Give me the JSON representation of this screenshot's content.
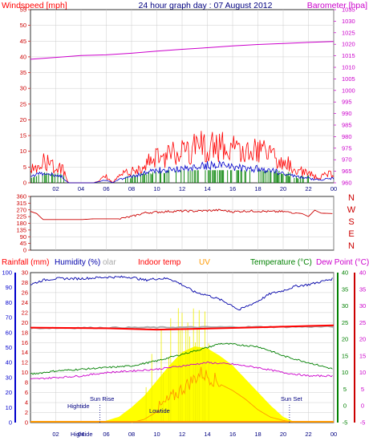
{
  "header": {
    "title": "24 hour graph day : 07 August 2012",
    "left_label": "Windspeed [mph]",
    "right_label": "Barometer [hpa]"
  },
  "colors": {
    "windspeed": "#ff0000",
    "wind_avg": "#0000cc",
    "wind_green": "#008000",
    "barometer": "#cc00cc",
    "direction": "#cc0000",
    "humidity": "#0000aa",
    "solar": "#aaaaaa",
    "indoor": "#ff0000",
    "uv": "#ff9900",
    "temperature": "#008000",
    "dewpoint": "#cc00cc",
    "rain": "#ff0000",
    "sun_fill": "#ffff00",
    "axis_red": "#cc0000",
    "axis_blue": "#0000cc",
    "axis_green": "#008000",
    "grid": "#cccccc",
    "night_band": "#ff9900"
  },
  "chart_data": [
    {
      "type": "line",
      "name": "wind-barometer",
      "x_ticks": [
        "02",
        "04",
        "06",
        "08",
        "10",
        "12",
        "14",
        "16",
        "18",
        "20",
        "22",
        "00"
      ],
      "left_axis": {
        "label": "Windspeed [mph]",
        "ylim": [
          0,
          55
        ],
        "ticks": [
          0,
          5,
          10,
          15,
          20,
          25,
          30,
          35,
          40,
          45,
          50,
          55
        ]
      },
      "right_axis": {
        "label": "Barometer [hpa]",
        "ylim": [
          960,
          1035
        ],
        "ticks": [
          960,
          965,
          970,
          975,
          980,
          985,
          990,
          995,
          1000,
          1005,
          1010,
          1015,
          1020,
          1025,
          1030,
          1035
        ]
      },
      "series": [
        {
          "name": "Windspeed [mph]",
          "x": [
            0,
            1,
            1.5,
            2,
            2.5,
            3,
            5,
            6,
            6.5,
            7,
            8,
            9,
            10,
            11,
            12,
            13,
            14,
            15,
            15.5,
            16,
            17,
            18,
            19,
            20,
            21,
            22,
            22.5,
            23,
            24
          ],
          "y": [
            4,
            7,
            6,
            5,
            5,
            0,
            0,
            2,
            0,
            2,
            4,
            6,
            8,
            9,
            10,
            11,
            12,
            12,
            13,
            11,
            10,
            10,
            9,
            7,
            4,
            3,
            2,
            2,
            3
          ]
        },
        {
          "x": [
            0,
            1,
            1.5,
            2,
            2.5,
            3,
            5,
            6,
            6.5,
            7,
            8,
            9,
            10,
            11,
            12,
            13,
            14,
            15,
            15.5,
            16,
            17,
            18,
            19,
            20,
            21,
            22,
            22.5,
            23,
            24
          ],
          "y": [
            2,
            3,
            3,
            2,
            2,
            0,
            0,
            1,
            0,
            1,
            2,
            3,
            4,
            4,
            4.5,
            5,
            5.5,
            5.5,
            6,
            5,
            4.5,
            4.5,
            4,
            3,
            2,
            1.5,
            1,
            1,
            1.5
          ]
        },
        {
          "name": "Barometer [hpa]",
          "x": [
            0,
            2,
            4,
            6,
            8,
            10,
            12,
            14,
            16,
            18,
            20,
            22,
            24
          ],
          "y": [
            1013.5,
            1014.3,
            1015.1,
            1015.4,
            1016.1,
            1017.0,
            1017.8,
            1018.5,
            1019.3,
            1019.9,
            1020.3,
            1020.8,
            1021.2
          ]
        }
      ]
    },
    {
      "type": "line",
      "name": "wind-direction",
      "x_ticks": [
        "02",
        "04",
        "06",
        "08",
        "10",
        "12",
        "14",
        "16",
        "18",
        "20",
        "22",
        "00"
      ],
      "left_axis": {
        "ylim": [
          0,
          360
        ],
        "ticks": [
          0,
          45,
          90,
          135,
          180,
          225,
          270,
          315,
          360
        ]
      },
      "right_letters": [
        "N",
        "W",
        "S",
        "E",
        "N"
      ],
      "series": [
        {
          "x": [
            0,
            0.5,
            1,
            2,
            3,
            4,
            5,
            6,
            7,
            8,
            9,
            10,
            11,
            12,
            13,
            14,
            15,
            16,
            17,
            18,
            19,
            20,
            21,
            21.5,
            22,
            22.5,
            23,
            24
          ],
          "y": [
            260,
            245,
            205,
            205,
            205,
            205,
            210,
            210,
            210,
            225,
            250,
            255,
            260,
            262,
            262,
            265,
            268,
            258,
            262,
            262,
            258,
            258,
            250,
            245,
            225,
            268,
            248,
            245
          ]
        }
      ]
    },
    {
      "type": "line",
      "name": "rain-humidity-temperature",
      "legend": [
        "Rainfall (mm)",
        "Humidity (%)",
        "olar",
        "Indoor temp",
        "UV",
        "Temperature (°C)",
        "Dew Point (°C)"
      ],
      "x_ticks": [
        "02",
        "04",
        "06",
        "08",
        "10",
        "12",
        "14",
        "16",
        "18",
        "20",
        "22",
        "00"
      ],
      "axis_humidity": {
        "ylim": [
          0,
          100
        ],
        "ticks": [
          0,
          10,
          20,
          30,
          40,
          50,
          60,
          70,
          80,
          90,
          100
        ]
      },
      "axis_rain": {
        "ylim": [
          0,
          30
        ],
        "ticks": [
          0,
          2,
          4,
          6,
          8,
          10,
          12,
          14,
          16,
          18,
          20,
          22,
          24,
          26,
          28,
          30
        ]
      },
      "axis_temp": {
        "ylim": [
          -5,
          40
        ],
        "ticks": [
          -5,
          0,
          5,
          10,
          15,
          20,
          25,
          30,
          35,
          40
        ]
      },
      "series": [
        {
          "name": "Humidity (%)",
          "x": [
            0,
            1,
            2,
            4,
            6,
            8,
            9,
            10,
            11,
            12,
            13,
            14,
            15,
            16,
            16.5,
            17,
            18,
            19,
            20,
            21,
            22,
            23,
            24
          ],
          "y": [
            92,
            95,
            96,
            96,
            97,
            97,
            95,
            96,
            96,
            92,
            87,
            85,
            82,
            78,
            75,
            77,
            81,
            86,
            88,
            91,
            92,
            94,
            96
          ]
        },
        {
          "name": "olar",
          "x": [
            0,
            24
          ],
          "y": [
            63,
            64
          ]
        },
        {
          "name": "Indoor temp",
          "x": [
            0,
            6,
            10,
            14,
            18,
            24
          ],
          "y": [
            23.5,
            23.3,
            22.9,
            23.2,
            23.6,
            24.2
          ]
        },
        {
          "name": "Temperature (°C)",
          "x": [
            0,
            2,
            4,
            6,
            8,
            10,
            12,
            14,
            15,
            16,
            18,
            19,
            20,
            22,
            24
          ],
          "y": [
            9.5,
            10.5,
            11,
            11.5,
            12,
            13.5,
            15.5,
            17.5,
            18.7,
            18.5,
            17.8,
            16.5,
            15,
            13,
            11
          ]
        },
        {
          "name": "Dew Point (°C)",
          "x": [
            0,
            2,
            4,
            6,
            8,
            10,
            12,
            14,
            16,
            18,
            20,
            22,
            24
          ],
          "y": [
            8,
            8.5,
            9,
            10,
            10.5,
            11,
            12,
            13,
            12.5,
            11.5,
            10,
            9,
            9
          ]
        },
        {
          "name": "UV",
          "x": [
            8,
            9,
            10,
            11,
            12,
            12.5,
            13,
            13.5,
            14,
            15,
            16,
            17,
            18,
            19,
            20,
            21
          ],
          "y": [
            0,
            0.3,
            1,
            2,
            3,
            3.5,
            4,
            4.5,
            4.2,
            3.6,
            3,
            2.2,
            1.2,
            0.5,
            0.2,
            0
          ]
        },
        {
          "name": "Solar radiation",
          "x": [
            5.5,
            6,
            7,
            8,
            9,
            10,
            11,
            12,
            13,
            14,
            15,
            16,
            17,
            18,
            19,
            20,
            21
          ],
          "y": [
            0,
            10,
            30,
            80,
            140,
            220,
            300,
            370,
            400,
            390,
            350,
            300,
            230,
            160,
            90,
            30,
            0
          ]
        },
        {
          "name": "Rainfall (mm)",
          "x": [
            0,
            24
          ],
          "y": [
            0,
            0
          ]
        }
      ],
      "annotations": [
        "Hightide",
        "Sun Rise",
        "Lowtide",
        "Sun Set"
      ]
    }
  ],
  "x_labels": [
    "02",
    "04",
    "06",
    "08",
    "10",
    "12",
    "14",
    "16",
    "18",
    "20",
    "22",
    "00"
  ]
}
